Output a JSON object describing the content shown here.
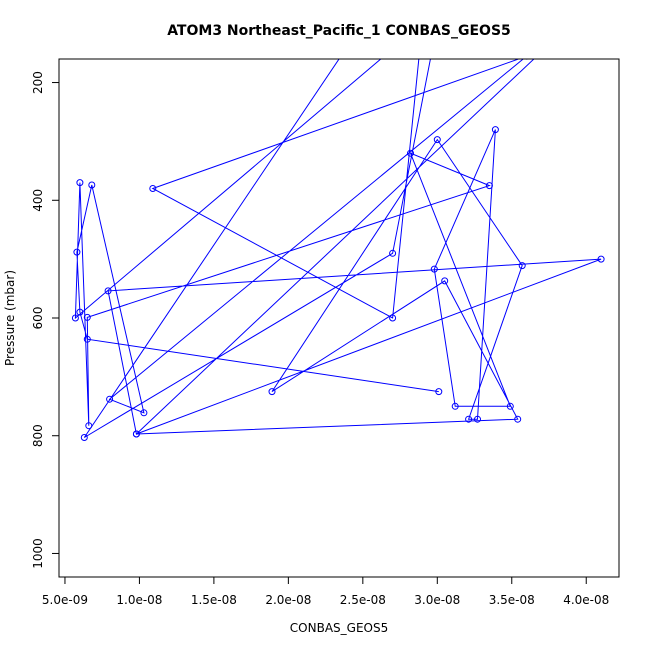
{
  "chart_data": {
    "type": "line",
    "title": "ATOM3 Northeast_Pacific_1 CONBAS_GEOS5",
    "xlabel": "CONBAS_GEOS5",
    "ylabel": "Pressure (mbar)",
    "xlim": [
      4.6e-09,
      4.22e-08
    ],
    "ylim": [
      1040,
      160
    ],
    "y_inverted": true,
    "grid": false,
    "markers": "open-circle",
    "color": "#0000ff",
    "x_ticks": [
      {
        "value": 5e-09,
        "label": "5.0e-09"
      },
      {
        "value": 1e-08,
        "label": "1.0e-08"
      },
      {
        "value": 1.5e-08,
        "label": "1.5e-08"
      },
      {
        "value": 2e-08,
        "label": "2.0e-08"
      },
      {
        "value": 2.5e-08,
        "label": "2.5e-08"
      },
      {
        "value": 3e-08,
        "label": "3.0e-08"
      },
      {
        "value": 3.5e-08,
        "label": "3.5e-08"
      },
      {
        "value": 4e-08,
        "label": "4.0e-08"
      }
    ],
    "y_ticks": [
      {
        "value": 200,
        "label": "200"
      },
      {
        "value": 400,
        "label": "400"
      },
      {
        "value": 600,
        "label": "600"
      },
      {
        "value": 800,
        "label": "800"
      },
      {
        "value": 1000,
        "label": "1000"
      }
    ],
    "series": [
      {
        "points": [
          [
            3.01e-08,
            725
          ],
          [
            6.5e-09,
            636
          ],
          [
            6e-09,
            590
          ],
          [
            5.8e-09,
            488
          ],
          [
            6.8e-09,
            374
          ],
          [
            1.03e-08,
            761
          ],
          [
            8e-09,
            738
          ],
          [
            3.6e-08,
            155
          ],
          [
            1.09e-08,
            380
          ],
          [
            2.7e-08,
            600
          ],
          [
            2.9e-08,
            100
          ],
          [
            5.7e-09,
            600
          ],
          [
            6e-09,
            370
          ],
          [
            6.6e-09,
            783
          ],
          [
            6.5e-09,
            599
          ],
          [
            3.35e-08,
            375
          ],
          [
            2.82e-08,
            320
          ],
          [
            3.49e-08,
            750
          ],
          [
            3.12e-08,
            750
          ],
          [
            2.98e-08,
            517
          ],
          [
            3.39e-08,
            280
          ],
          [
            3.27e-08,
            772
          ],
          [
            3.21e-08,
            772
          ],
          [
            3.57e-08,
            511
          ],
          [
            3e-08,
            297
          ],
          [
            1.89e-08,
            725
          ],
          [
            3.05e-08,
            537
          ],
          [
            3.54e-08,
            772
          ],
          [
            9.8e-09,
            797
          ],
          [
            4.1e-08,
            500
          ],
          [
            7.9e-09,
            554
          ],
          [
            9.8e-09,
            797
          ],
          [
            3.9e-08,
            100
          ],
          [
            3e-08,
            100
          ],
          [
            2.7e-08,
            490
          ],
          [
            6.3e-09,
            803
          ],
          [
            2.5e-08,
            100
          ]
        ]
      }
    ]
  }
}
